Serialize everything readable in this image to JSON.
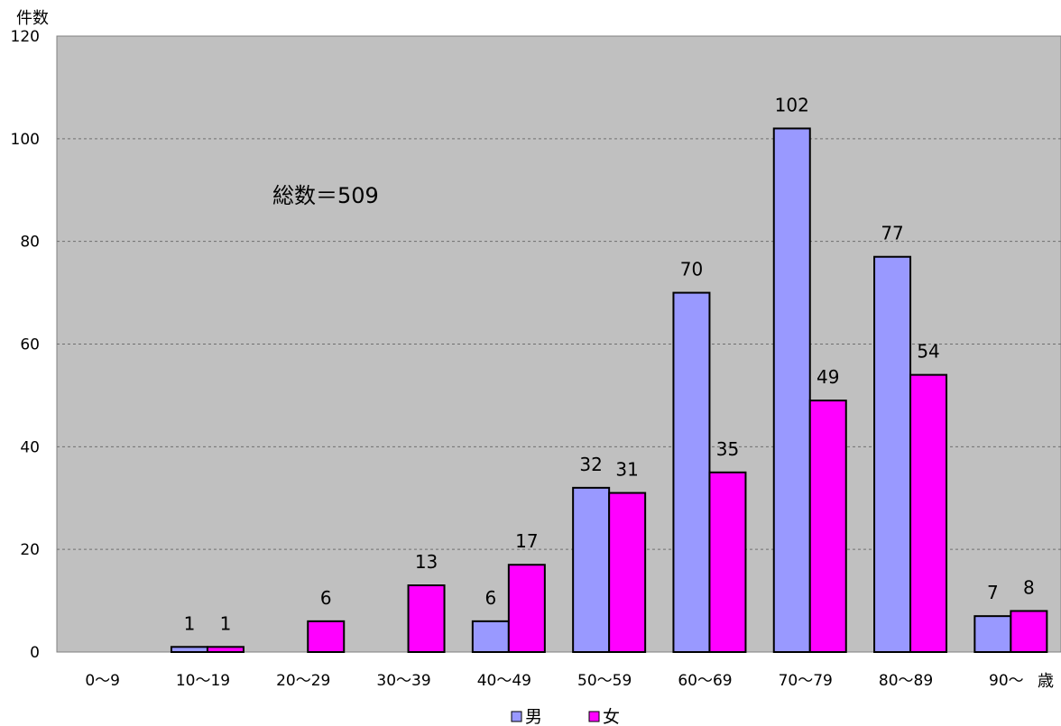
{
  "chart_data": {
    "type": "bar",
    "ylabel": "件数",
    "xlabel": "歳",
    "annotation": "総数＝509",
    "categories": [
      "0〜9",
      "10〜19",
      "20〜29",
      "30〜39",
      "40〜49",
      "50〜59",
      "60〜69",
      "70〜79",
      "80〜89",
      "90〜"
    ],
    "series": [
      {
        "name": "男",
        "color": "#9999ff",
        "values": [
          0,
          1,
          0,
          0,
          6,
          32,
          70,
          102,
          77,
          7
        ],
        "labels": [
          "",
          "1",
          "",
          "",
          "6",
          "32",
          "70",
          "102",
          "77",
          "7"
        ]
      },
      {
        "name": "女",
        "color": "#ff00ff",
        "values": [
          0,
          1,
          6,
          13,
          17,
          31,
          35,
          49,
          54,
          8
        ],
        "labels": [
          "",
          "1",
          "6",
          "13",
          "17",
          "31",
          "35",
          "49",
          "54",
          "8"
        ]
      }
    ],
    "ylim": [
      0,
      120
    ],
    "yticks": [
      "0",
      "20",
      "40",
      "60",
      "80",
      "100",
      "120"
    ],
    "plot_background": "#c0c0c0",
    "grid": true,
    "legend_position": "bottom-center"
  }
}
